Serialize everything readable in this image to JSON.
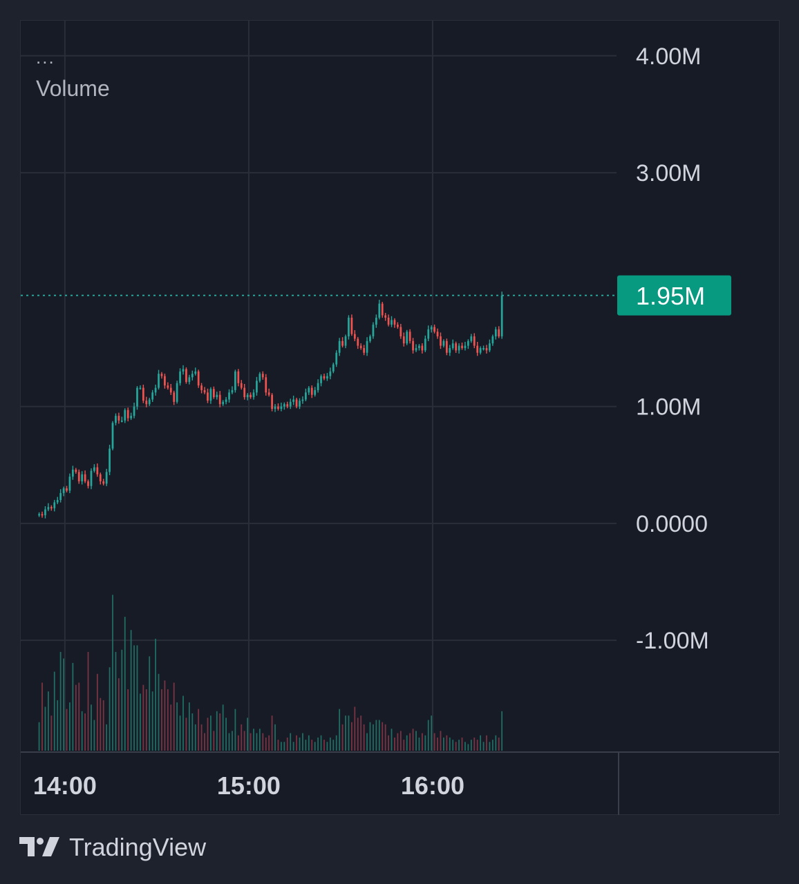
{
  "legend": {
    "dots": "...",
    "title": "Volume"
  },
  "brand": {
    "name": "TradingView",
    "icon": "tradingview-logo-icon"
  },
  "colors": {
    "up": "#26a69a",
    "down": "#ef5350",
    "up_volume": "#1f6d63",
    "down_volume": "#7a3343",
    "last_label_bg": "#089981",
    "grid": "#2a2e39",
    "axis_text": "#d1d4dc"
  },
  "chart_data": {
    "type": "candlestick",
    "title": "",
    "ylabel": "",
    "xlabel": "",
    "grid": true,
    "ylim": [
      -1.95,
      4.3
    ],
    "y_ticks": [
      "4.00M",
      "3.00M",
      "1.00M",
      "0.0000",
      "-1.00M"
    ],
    "y_tick_values": [
      4,
      3,
      1,
      0,
      -1
    ],
    "x_ticks": [
      "14:00",
      "15:00",
      "16:00"
    ],
    "x_tick_values": [
      14,
      15,
      16
    ],
    "xlim": [
      13.76,
      17.0
    ],
    "last_value": 1.95,
    "last_value_label": "1.95M",
    "price_unit": "M",
    "candles_start": 13.86,
    "candle_interval_minutes": 1,
    "closes": [
      0.08,
      0.07,
      0.12,
      0.14,
      0.13,
      0.18,
      0.2,
      0.26,
      0.3,
      0.28,
      0.4,
      0.46,
      0.44,
      0.36,
      0.42,
      0.36,
      0.32,
      0.45,
      0.48,
      0.42,
      0.36,
      0.34,
      0.44,
      0.64,
      0.86,
      0.92,
      0.88,
      0.88,
      0.97,
      0.9,
      0.92,
      1.0,
      1.16,
      1.16,
      1.05,
      1.02,
      1.06,
      1.12,
      1.16,
      1.28,
      1.26,
      1.18,
      1.16,
      1.12,
      1.04,
      1.2,
      1.3,
      1.32,
      1.21,
      1.25,
      1.28,
      1.3,
      1.18,
      1.14,
      1.12,
      1.05,
      1.15,
      1.08,
      1.1,
      1.02,
      1.04,
      1.06,
      1.12,
      1.14,
      1.3,
      1.2,
      1.16,
      1.08,
      1.1,
      1.08,
      1.12,
      1.22,
      1.28,
      1.25,
      1.12,
      1.1,
      0.98,
      1.0,
      0.98,
      1.0,
      1.02,
      1.0,
      1.04,
      1.06,
      1.0,
      1.05,
      1.06,
      1.12,
      1.16,
      1.1,
      1.14,
      1.2,
      1.26,
      1.24,
      1.26,
      1.3,
      1.36,
      1.46,
      1.56,
      1.52,
      1.6,
      1.76,
      1.62,
      1.58,
      1.52,
      1.5,
      1.46,
      1.56,
      1.6,
      1.7,
      1.76,
      1.88,
      1.78,
      1.76,
      1.7,
      1.74,
      1.7,
      1.68,
      1.6,
      1.54,
      1.64,
      1.56,
      1.48,
      1.5,
      1.52,
      1.48,
      1.58,
      1.66,
      1.68,
      1.64,
      1.6,
      1.52,
      1.56,
      1.46,
      1.5,
      1.54,
      1.48,
      1.52,
      1.5,
      1.52,
      1.56,
      1.6,
      1.52,
      1.46,
      1.5,
      1.5,
      1.48,
      1.54,
      1.6,
      1.66,
      1.6,
      1.95
    ],
    "volumes": [
      0.13,
      0.31,
      0.2,
      0.27,
      0.16,
      0.36,
      0.23,
      0.45,
      0.42,
      0.19,
      0.22,
      0.4,
      0.3,
      0.31,
      0.18,
      0.17,
      0.45,
      0.21,
      0.14,
      0.35,
      0.24,
      0.23,
      0.12,
      0.38,
      0.71,
      0.45,
      0.33,
      0.46,
      0.61,
      0.28,
      0.55,
      0.48,
      0.48,
      0.26,
      0.3,
      0.28,
      0.43,
      0.27,
      0.51,
      0.35,
      0.28,
      0.32,
      0.28,
      0.21,
      0.31,
      0.22,
      0.16,
      0.25,
      0.15,
      0.22,
      0.17,
      0.12,
      0.19,
      0.12,
      0.08,
      0.15,
      0.16,
      0.09,
      0.18,
      0.17,
      0.21,
      0.15,
      0.08,
      0.09,
      0.19,
      0.07,
      0.12,
      0.09,
      0.15,
      0.08,
      0.1,
      0.08,
      0.1,
      0.08,
      0.06,
      0.07,
      0.16,
      0.12,
      0.05,
      0.04,
      0.04,
      0.06,
      0.08,
      0.04,
      0.07,
      0.06,
      0.08,
      0.05,
      0.07,
      0.05,
      0.04,
      0.06,
      0.07,
      0.05,
      0.04,
      0.06,
      0.05,
      0.07,
      0.19,
      0.12,
      0.16,
      0.16,
      0.13,
      0.2,
      0.15,
      0.16,
      0.12,
      0.08,
      0.13,
      0.12,
      0.14,
      0.14,
      0.13,
      0.12,
      0.07,
      0.1,
      0.06,
      0.08,
      0.09,
      0.05,
      0.07,
      0.08,
      0.1,
      0.09,
      0.06,
      0.08,
      0.07,
      0.14,
      0.16,
      0.08,
      0.06,
      0.09,
      0.06,
      0.07,
      0.06,
      0.05,
      0.04,
      0.05,
      0.06,
      0.04,
      0.03,
      0.05,
      0.06,
      0.05,
      0.07,
      0.04,
      0.07,
      0.04,
      0.05,
      0.07,
      0.06,
      0.18
    ],
    "volume_ylim": [
      0,
      0.84
    ]
  }
}
